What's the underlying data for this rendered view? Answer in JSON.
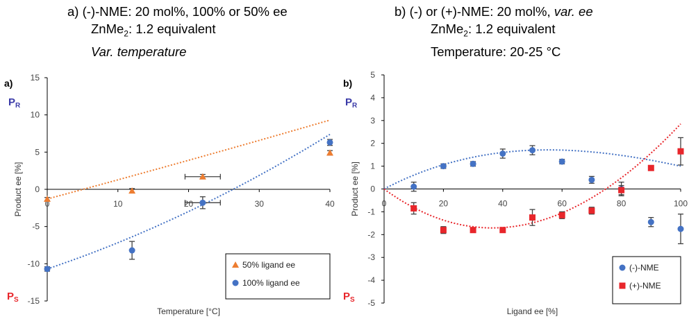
{
  "header_a": {
    "line1_prefix": "a) (-)-NME: 20 mol%, 100% or 50% ee",
    "line2_prefix": "ZnMe",
    "line2_sub": "2",
    "line2_suffix": ": 1.2 equivalent",
    "line3": "Var. temperature"
  },
  "header_b": {
    "line1_prefix": "b) (-) or (+)-NME: 20 mol%, ",
    "line1_italic": "var. ee",
    "line2_prefix": "ZnMe",
    "line2_sub": "2",
    "line2_suffix": ": 1.2 equivalent",
    "line3": "Temperature: 20-25 °C"
  },
  "colors": {
    "orange": "#ED7D31",
    "blue": "#4472C4",
    "red": "#E8262B",
    "pr_label": "#3B3BA8",
    "ps_label": "#E8262B"
  },
  "chart_data": [
    {
      "type": "scatter",
      "panel_label": "a)",
      "xlabel": "Temperature [°C]",
      "ylabel": "Product ee [%]",
      "xlim": [
        0,
        40
      ],
      "ylim": [
        -15,
        15
      ],
      "xticks": [
        "0",
        "10",
        "20",
        "30",
        "40"
      ],
      "yticks": [
        "-15",
        "-10",
        "-5",
        "0",
        "5",
        "10",
        "15"
      ],
      "pr_label": "P",
      "pr_sub": "R",
      "ps_label": "P",
      "ps_sub": "S",
      "series": [
        {
          "name": "50% ligand ee",
          "marker": "triangle",
          "color": "#ED7D31",
          "x": [
            0,
            12,
            22,
            40
          ],
          "y": [
            -1.3,
            -0.2,
            1.7,
            4.9
          ],
          "yerr": [
            0.2,
            0.3,
            0.3,
            0.3
          ],
          "xerr": [
            0,
            0,
            2.5,
            0
          ],
          "trend": [
            -1.3,
            0.255,
            0.00025
          ]
        },
        {
          "name": "100% ligand ee",
          "marker": "circle",
          "color": "#4472C4",
          "x": [
            0,
            12,
            22,
            40
          ],
          "y": [
            -10.7,
            -8.2,
            -1.8,
            6.3
          ],
          "yerr": [
            0.3,
            1.2,
            0.8,
            0.4
          ],
          "xerr": [
            0,
            0,
            2.5,
            0
          ],
          "trend": [
            -10.7,
            0.32,
            0.0033
          ]
        }
      ]
    },
    {
      "type": "scatter",
      "panel_label": "b)",
      "xlabel": "Ligand ee [%]",
      "ylabel": "Product ee [%]",
      "xlim": [
        0,
        100
      ],
      "ylim": [
        -5,
        5
      ],
      "xticks": [
        "0",
        "20",
        "40",
        "60",
        "80",
        "100"
      ],
      "yticks": [
        "-5",
        "-4",
        "-3",
        "-2",
        "-1",
        "0",
        "1",
        "2",
        "3",
        "4",
        "5"
      ],
      "pr_label": "P",
      "pr_sub": "R",
      "ps_label": "P",
      "ps_sub": "S",
      "series": [
        {
          "name": "(-)-NME",
          "marker": "circle",
          "color": "#4472C4",
          "x": [
            10,
            20,
            30,
            40,
            50,
            60,
            70,
            80,
            90,
            100
          ],
          "y": [
            0.1,
            1.0,
            1.1,
            1.55,
            1.7,
            1.2,
            0.4,
            0.0,
            -1.45,
            -1.75
          ],
          "yerr": [
            0.2,
            0.1,
            0.1,
            0.2,
            0.2,
            0.1,
            0.15,
            0.3,
            0.2,
            0.65
          ],
          "trend": [
            0,
            0.068,
            -0.00078,
            2e-06
          ]
        },
        {
          "name": "(+)-NME",
          "marker": "square",
          "color": "#E8262B",
          "x": [
            10,
            20,
            30,
            40,
            50,
            60,
            70,
            80,
            90,
            100
          ],
          "y": [
            -0.85,
            -1.8,
            -1.8,
            -1.8,
            -1.25,
            -1.15,
            -0.95,
            -0.05,
            0.92,
            1.65
          ],
          "yerr": [
            0.25,
            0.15,
            0.1,
            0.1,
            0.35,
            0.15,
            0.15,
            0.2,
            0.1,
            0.6
          ],
          "trend": [
            0,
            -0.0955,
            0.00139,
            -1.5e-06
          ]
        }
      ]
    }
  ]
}
